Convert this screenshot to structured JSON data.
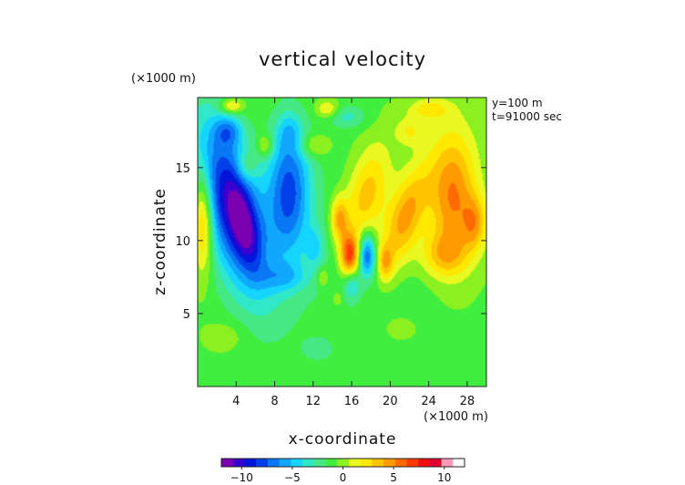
{
  "chart_data": {
    "type": "heatmap",
    "title": "vertical velocity",
    "xlabel": "x-coordinate",
    "ylabel": "z-coordinate",
    "x_unit": "(×1000 m)",
    "y_unit": "(×1000 m)",
    "annotations": [
      "y=100 m",
      "t=91000 sec"
    ],
    "xlim": [
      0,
      30
    ],
    "ylim": [
      0,
      19.8
    ],
    "x_ticks": [
      4,
      8,
      12,
      16,
      20,
      24,
      28
    ],
    "y_ticks": [
      5,
      10,
      15
    ],
    "colorbar": {
      "range": [
        -12,
        12
      ],
      "ticks": [
        -10,
        -5,
        0,
        5,
        10
      ],
      "colors": [
        "#7b00b0",
        "#3a00d0",
        "#0015d8",
        "#0040e8",
        "#0a78f5",
        "#10a8ff",
        "#15d5ff",
        "#30e8c8",
        "#44e884",
        "#40ee40",
        "#8af020",
        "#e8f820",
        "#ffe800",
        "#ffc400",
        "#ff9a00",
        "#ff6a00",
        "#ff3a00",
        "#f01010",
        "#e00030",
        "#ff9ab4",
        "#ffffff"
      ]
    },
    "blobs": [
      [
        14.5,
        9,
        12,
        8,
        0,
        -1.2
      ],
      [
        3.5,
        12.5,
        3.2,
        6.0,
        -0.35,
        -9
      ],
      [
        4.8,
        11.0,
        1.4,
        2.8,
        -0.3,
        -4.5
      ],
      [
        9.5,
        13.5,
        2.2,
        4.5,
        0,
        -7
      ],
      [
        3.2,
        17.5,
        1.4,
        1.0,
        0,
        -3.5
      ],
      [
        9.5,
        17.5,
        1.2,
        1.2,
        0,
        -2
      ],
      [
        15.5,
        18.5,
        2,
        0.8,
        0,
        -2.5
      ],
      [
        12.2,
        9.5,
        1.0,
        1.4,
        0,
        -2.5
      ],
      [
        17.6,
        9.0,
        0.9,
        1.5,
        0,
        -7
      ],
      [
        16.0,
        7.0,
        0.8,
        1.0,
        0,
        -3.5
      ],
      [
        9.0,
        7.5,
        2.5,
        1.0,
        0,
        -2.5
      ],
      [
        0.6,
        11.5,
        1.0,
        3.5,
        0,
        6
      ],
      [
        15.8,
        9.0,
        1.0,
        1.5,
        0,
        8
      ],
      [
        17.5,
        13.0,
        2.2,
        3.5,
        0.3,
        5
      ],
      [
        21.5,
        11.5,
        2.0,
        3.5,
        0.4,
        6
      ],
      [
        19.5,
        8.5,
        0.8,
        1.2,
        0,
        4
      ],
      [
        14.7,
        11.5,
        0.9,
        1.5,
        0,
        5
      ],
      [
        26.5,
        13.0,
        2.5,
        4.5,
        0,
        6.5
      ],
      [
        28.8,
        11.2,
        1.2,
        1.8,
        0,
        4
      ],
      [
        25.5,
        9.0,
        2.5,
        1.5,
        0,
        3.5
      ],
      [
        5.0,
        15.0,
        1.0,
        1.0,
        0,
        2.5
      ],
      [
        7.0,
        16.5,
        0.8,
        0.8,
        0,
        3
      ],
      [
        12.0,
        16.5,
        1.6,
        0.8,
        0,
        2.5
      ],
      [
        3.5,
        19.2,
        1.2,
        0.5,
        0,
        4
      ],
      [
        13.5,
        19.0,
        1.2,
        0.6,
        0,
        3
      ],
      [
        24.0,
        19.0,
        2.0,
        0.7,
        0,
        3
      ],
      [
        13.0,
        7.5,
        0.6,
        0.7,
        0,
        2.5
      ],
      [
        14.5,
        6.0,
        0.5,
        0.5,
        0,
        2
      ],
      [
        22.0,
        17.5,
        1.5,
        1.0,
        0,
        2.5
      ],
      [
        3.0,
        3.5,
        2.0,
        1.0,
        0,
        1.2
      ],
      [
        12.5,
        2.5,
        2.0,
        1.0,
        0,
        -1.0
      ],
      [
        21.0,
        4.0,
        2.0,
        1.0,
        0,
        1.0
      ]
    ]
  }
}
